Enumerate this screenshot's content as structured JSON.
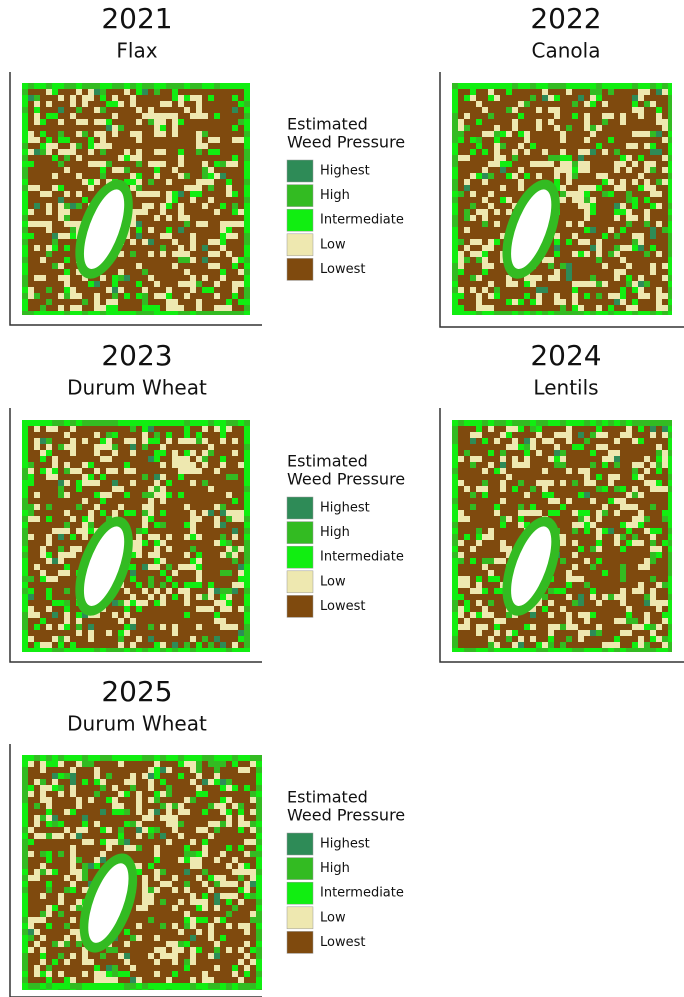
{
  "panels": [
    {
      "year": "2021",
      "crop": "Flax"
    },
    {
      "year": "2022",
      "crop": "Canola"
    },
    {
      "year": "2023",
      "crop": "Durum Wheat"
    },
    {
      "year": "2024",
      "crop": "Lentils"
    },
    {
      "year": "2025",
      "crop": "Durum Wheat"
    }
  ],
  "legend": {
    "title": [
      "Estimated",
      "Weed Pressure"
    ],
    "items": [
      {
        "label": "Highest",
        "color": "#2e8b57"
      },
      {
        "label": "High",
        "color": "#33bb22"
      },
      {
        "label": "Intermediate",
        "color": "#11ee11"
      },
      {
        "label": "Low",
        "color": "#eee8b0"
      },
      {
        "label": "Lowest",
        "color": "#7f4a0e"
      }
    ]
  }
}
